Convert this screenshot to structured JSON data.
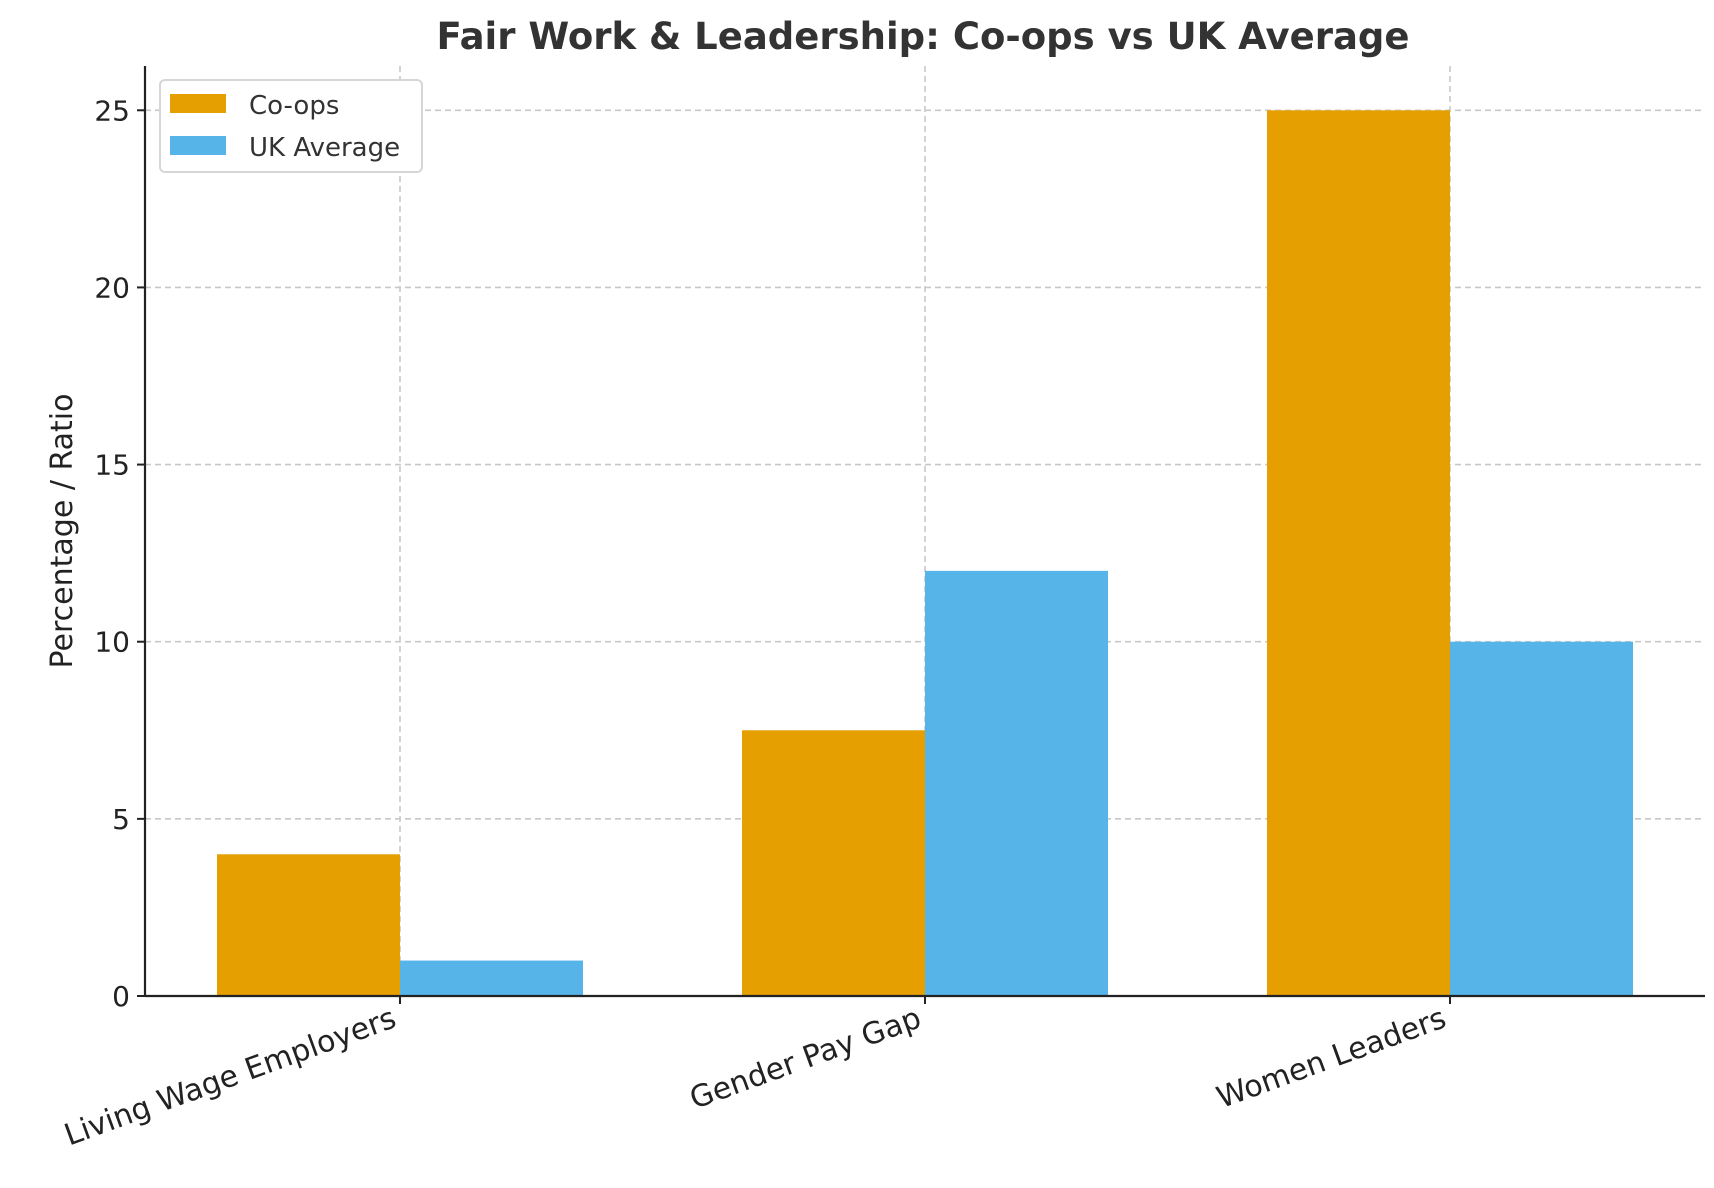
{
  "chart_data": {
    "type": "bar",
    "title": "Fair Work & Leadership: Co-ops vs UK Average",
    "xlabel": "",
    "ylabel": "Percentage / Ratio",
    "categories": [
      "Living Wage Employers",
      "Gender Pay Gap",
      "Women Leaders"
    ],
    "series": [
      {
        "name": "Co-ops",
        "color": "#E69F00",
        "values": [
          4,
          7.5,
          25
        ]
      },
      {
        "name": "UK Average",
        "color": "#56B4E9",
        "values": [
          1,
          12,
          10
        ]
      }
    ],
    "ylim": [
      0,
      26.25
    ],
    "yticks": [
      0,
      5,
      10,
      15,
      20,
      25
    ],
    "grid": true,
    "legend_position": "top-left"
  }
}
